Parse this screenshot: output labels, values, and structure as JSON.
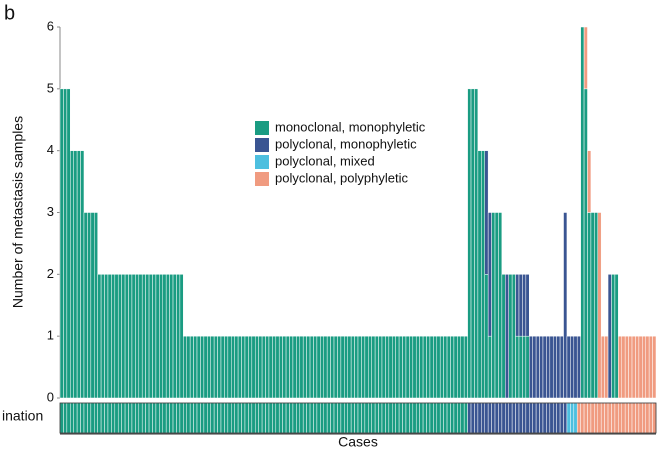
{
  "chart_data": {
    "type": "stacked_bar",
    "panel_label": "b",
    "y_label": "Number of metastasis samples",
    "x_label": "Cases",
    "strip_label": "ination",
    "ylim": [
      0,
      6
    ],
    "yticks": [
      0,
      1,
      2,
      3,
      4,
      5,
      6
    ],
    "series": [
      {
        "name": "monoclonal, monophyletic",
        "color": "#1a9c82",
        "values": [
          5,
          5,
          5,
          4,
          4,
          4,
          4,
          3,
          3,
          3,
          3,
          2,
          2,
          2,
          2,
          2,
          2,
          2,
          2,
          2,
          2,
          2,
          2,
          2,
          2,
          2,
          2,
          2,
          2,
          2,
          2,
          2,
          2,
          2,
          2,
          2,
          1,
          1,
          1,
          1,
          1,
          1,
          1,
          1,
          1,
          1,
          1,
          1,
          1,
          1,
          1,
          1,
          1,
          1,
          1,
          1,
          1,
          1,
          1,
          1,
          1,
          1,
          1,
          1,
          1,
          1,
          1,
          1,
          1,
          1,
          1,
          1,
          1,
          1,
          1,
          1,
          1,
          1,
          1,
          1,
          1,
          1,
          1,
          1,
          1,
          1,
          1,
          1,
          1,
          1,
          1,
          1,
          1,
          1,
          1,
          1,
          1,
          1,
          1,
          1,
          1,
          1,
          1,
          1,
          1,
          1,
          1,
          1,
          1,
          1,
          1,
          1,
          1,
          1,
          1,
          1,
          1,
          1,
          1,
          5,
          5,
          5,
          4,
          4,
          2,
          1,
          3,
          3,
          3,
          2,
          0,
          2,
          2,
          1,
          1,
          1,
          1,
          0,
          0,
          0,
          0,
          0,
          0,
          0,
          0,
          0,
          0,
          0,
          0,
          0,
          0,
          0,
          6,
          5,
          3,
          3,
          3,
          0,
          0,
          0,
          0,
          2,
          2,
          0,
          0,
          0,
          0,
          0,
          0,
          0,
          0,
          0,
          0,
          0
        ]
      },
      {
        "name": "polyclonal, monophyletic",
        "color": "#3a5592",
        "values": [
          0,
          0,
          0,
          0,
          0,
          0,
          0,
          0,
          0,
          0,
          0,
          0,
          0,
          0,
          0,
          0,
          0,
          0,
          0,
          0,
          0,
          0,
          0,
          0,
          0,
          0,
          0,
          0,
          0,
          0,
          0,
          0,
          0,
          0,
          0,
          0,
          0,
          0,
          0,
          0,
          0,
          0,
          0,
          0,
          0,
          0,
          0,
          0,
          0,
          0,
          0,
          0,
          0,
          0,
          0,
          0,
          0,
          0,
          0,
          0,
          0,
          0,
          0,
          0,
          0,
          0,
          0,
          0,
          0,
          0,
          0,
          0,
          0,
          0,
          0,
          0,
          0,
          0,
          0,
          0,
          0,
          0,
          0,
          0,
          0,
          0,
          0,
          0,
          0,
          0,
          0,
          0,
          0,
          0,
          0,
          0,
          0,
          0,
          0,
          0,
          0,
          0,
          0,
          0,
          0,
          0,
          0,
          0,
          0,
          0,
          0,
          0,
          0,
          0,
          0,
          0,
          0,
          0,
          0,
          0,
          0,
          0,
          0,
          0,
          2,
          2,
          0,
          0,
          0,
          0,
          2,
          0,
          0,
          1,
          1,
          1,
          1,
          1,
          1,
          1,
          1,
          1,
          1,
          1,
          1,
          1,
          1,
          3,
          1,
          1,
          1,
          1,
          0,
          0,
          0,
          0,
          0,
          0,
          0,
          0,
          2,
          0,
          0,
          0,
          0,
          0,
          0,
          0,
          0,
          0,
          0,
          0,
          0,
          0
        ]
      },
      {
        "name": "polyclonal, mixed",
        "color": "#4dbfdf",
        "values": [
          0,
          0,
          0,
          0,
          0,
          0,
          0,
          0,
          0,
          0,
          0,
          0,
          0,
          0,
          0,
          0,
          0,
          0,
          0,
          0,
          0,
          0,
          0,
          0,
          0,
          0,
          0,
          0,
          0,
          0,
          0,
          0,
          0,
          0,
          0,
          0,
          0,
          0,
          0,
          0,
          0,
          0,
          0,
          0,
          0,
          0,
          0,
          0,
          0,
          0,
          0,
          0,
          0,
          0,
          0,
          0,
          0,
          0,
          0,
          0,
          0,
          0,
          0,
          0,
          0,
          0,
          0,
          0,
          0,
          0,
          0,
          0,
          0,
          0,
          0,
          0,
          0,
          0,
          0,
          0,
          0,
          0,
          0,
          0,
          0,
          0,
          0,
          0,
          0,
          0,
          0,
          0,
          0,
          0,
          0,
          0,
          0,
          0,
          0,
          0,
          0,
          0,
          0,
          0,
          0,
          0,
          0,
          0,
          0,
          0,
          0,
          0,
          0,
          0,
          0,
          0,
          0,
          0,
          0,
          0,
          0,
          0,
          0,
          0,
          0,
          0,
          0,
          0,
          0,
          0,
          0,
          0,
          0,
          0,
          0,
          0,
          0,
          0,
          0,
          0,
          0,
          0,
          0,
          0,
          0,
          0,
          0,
          0,
          0,
          0,
          0,
          0,
          0,
          0,
          0,
          0,
          0,
          0,
          0,
          0,
          0,
          0,
          0,
          0,
          0,
          0,
          0,
          0,
          0,
          0,
          0,
          0,
          0,
          0
        ]
      },
      {
        "name": "polyclonal, polyphyletic",
        "color": "#f09b80",
        "values": [
          0,
          0,
          0,
          0,
          0,
          0,
          0,
          0,
          0,
          0,
          0,
          0,
          0,
          0,
          0,
          0,
          0,
          0,
          0,
          0,
          0,
          0,
          0,
          0,
          0,
          0,
          0,
          0,
          0,
          0,
          0,
          0,
          0,
          0,
          0,
          0,
          0,
          0,
          0,
          0,
          0,
          0,
          0,
          0,
          0,
          0,
          0,
          0,
          0,
          0,
          0,
          0,
          0,
          0,
          0,
          0,
          0,
          0,
          0,
          0,
          0,
          0,
          0,
          0,
          0,
          0,
          0,
          0,
          0,
          0,
          0,
          0,
          0,
          0,
          0,
          0,
          0,
          0,
          0,
          0,
          0,
          0,
          0,
          0,
          0,
          0,
          0,
          0,
          0,
          0,
          0,
          0,
          0,
          0,
          0,
          0,
          0,
          0,
          0,
          0,
          0,
          0,
          0,
          0,
          0,
          0,
          0,
          0,
          0,
          0,
          0,
          0,
          0,
          0,
          0,
          0,
          0,
          0,
          0,
          0,
          0,
          0,
          0,
          0,
          0,
          0,
          0,
          0,
          0,
          0,
          0,
          0,
          0,
          0,
          0,
          0,
          0,
          0,
          0,
          0,
          0,
          0,
          0,
          0,
          0,
          0,
          0,
          0,
          0,
          0,
          0,
          0,
          0,
          1,
          1,
          0,
          0,
          3,
          1,
          1,
          0,
          0,
          0,
          1,
          1,
          1,
          1,
          1,
          1,
          1,
          1,
          1,
          1,
          1
        ]
      }
    ],
    "dissemination_type": [
      0,
      0,
      0,
      0,
      0,
      0,
      0,
      0,
      0,
      0,
      0,
      0,
      0,
      0,
      0,
      0,
      0,
      0,
      0,
      0,
      0,
      0,
      0,
      0,
      0,
      0,
      0,
      0,
      0,
      0,
      0,
      0,
      0,
      0,
      0,
      0,
      0,
      0,
      0,
      0,
      0,
      0,
      0,
      0,
      0,
      0,
      0,
      0,
      0,
      0,
      0,
      0,
      0,
      0,
      0,
      0,
      0,
      0,
      0,
      0,
      0,
      0,
      0,
      0,
      0,
      0,
      0,
      0,
      0,
      0,
      0,
      0,
      0,
      0,
      0,
      0,
      0,
      0,
      0,
      0,
      0,
      0,
      0,
      0,
      0,
      0,
      0,
      0,
      0,
      0,
      0,
      0,
      0,
      0,
      0,
      0,
      0,
      0,
      0,
      0,
      0,
      0,
      0,
      0,
      0,
      0,
      0,
      0,
      0,
      0,
      0,
      0,
      0,
      0,
      0,
      0,
      0,
      0,
      0,
      1,
      1,
      1,
      1,
      1,
      1,
      1,
      1,
      1,
      1,
      1,
      1,
      1,
      1,
      1,
      1,
      1,
      1,
      1,
      1,
      1,
      1,
      1,
      1,
      1,
      1,
      1,
      1,
      1,
      2,
      2,
      2,
      3,
      3,
      3,
      3,
      3,
      3,
      3,
      3,
      3,
      3,
      3,
      3,
      3,
      3,
      3,
      3,
      3,
      3,
      3,
      3,
      3,
      3,
      3
    ]
  }
}
